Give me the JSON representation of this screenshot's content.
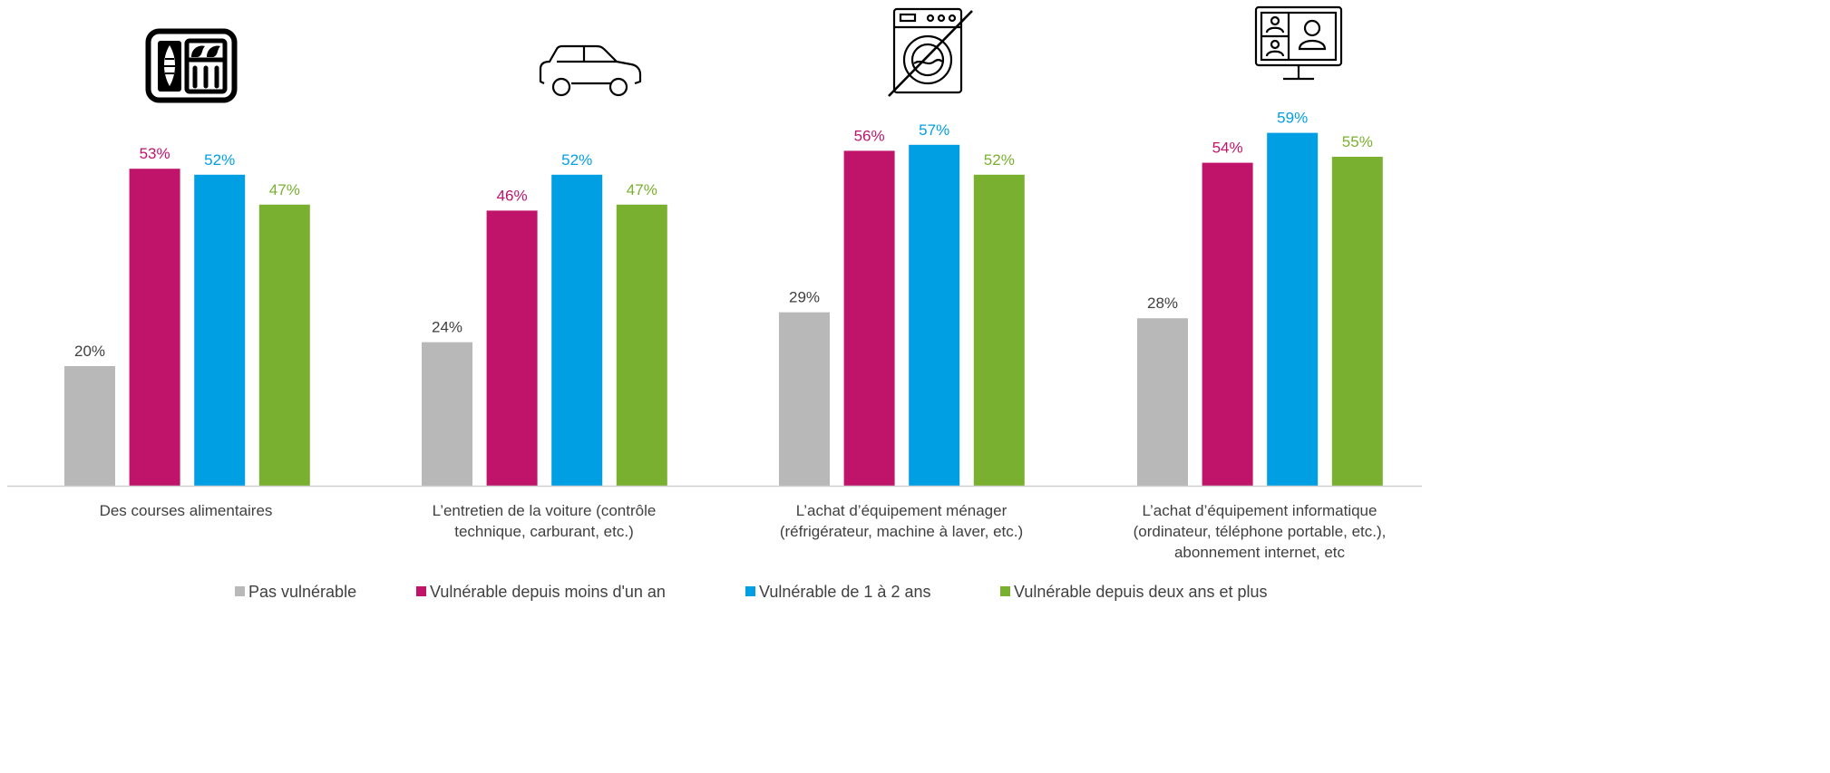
{
  "chart_data": {
    "type": "bar",
    "categories": [
      [
        "Des courses alimentaires"
      ],
      [
        "L’entretien de la voiture (contrôle",
        "technique, carburant, etc.)"
      ],
      [
        "L’achat d’équipement ménager",
        "(réfrigérateur,  machine à laver, etc.)"
      ],
      [
        "L’achat d’équipement informatique",
        "(ordinateur, téléphone portable, etc.),",
        "abonnement internet, etc"
      ]
    ],
    "category_icons": [
      "food-tray-icon",
      "car-icon",
      "washing-machine-crossed-icon",
      "video-call-monitor-icon"
    ],
    "series": [
      {
        "name": "Pas vulnérable",
        "color": "#b8b8b8",
        "label_color": "#404040",
        "values": [
          20,
          24,
          29,
          28
        ]
      },
      {
        "name": "Vulnérable depuis moins d'un an",
        "color": "#c0146a",
        "label_color": "#c0146a",
        "values": [
          53,
          46,
          56,
          54
        ]
      },
      {
        "name": "Vulnérable de 1 à 2 ans",
        "color": "#009fe3",
        "label_color": "#009fe3",
        "values": [
          52,
          52,
          57,
          59
        ]
      },
      {
        "name": "Vulnérable depuis deux ans et plus",
        "color": "#7ab030",
        "label_color": "#7ab030",
        "values": [
          47,
          47,
          52,
          55
        ]
      }
    ],
    "value_suffix": "%",
    "ylim": [
      0,
      65
    ],
    "grid": false,
    "legend_position": "bottom"
  }
}
